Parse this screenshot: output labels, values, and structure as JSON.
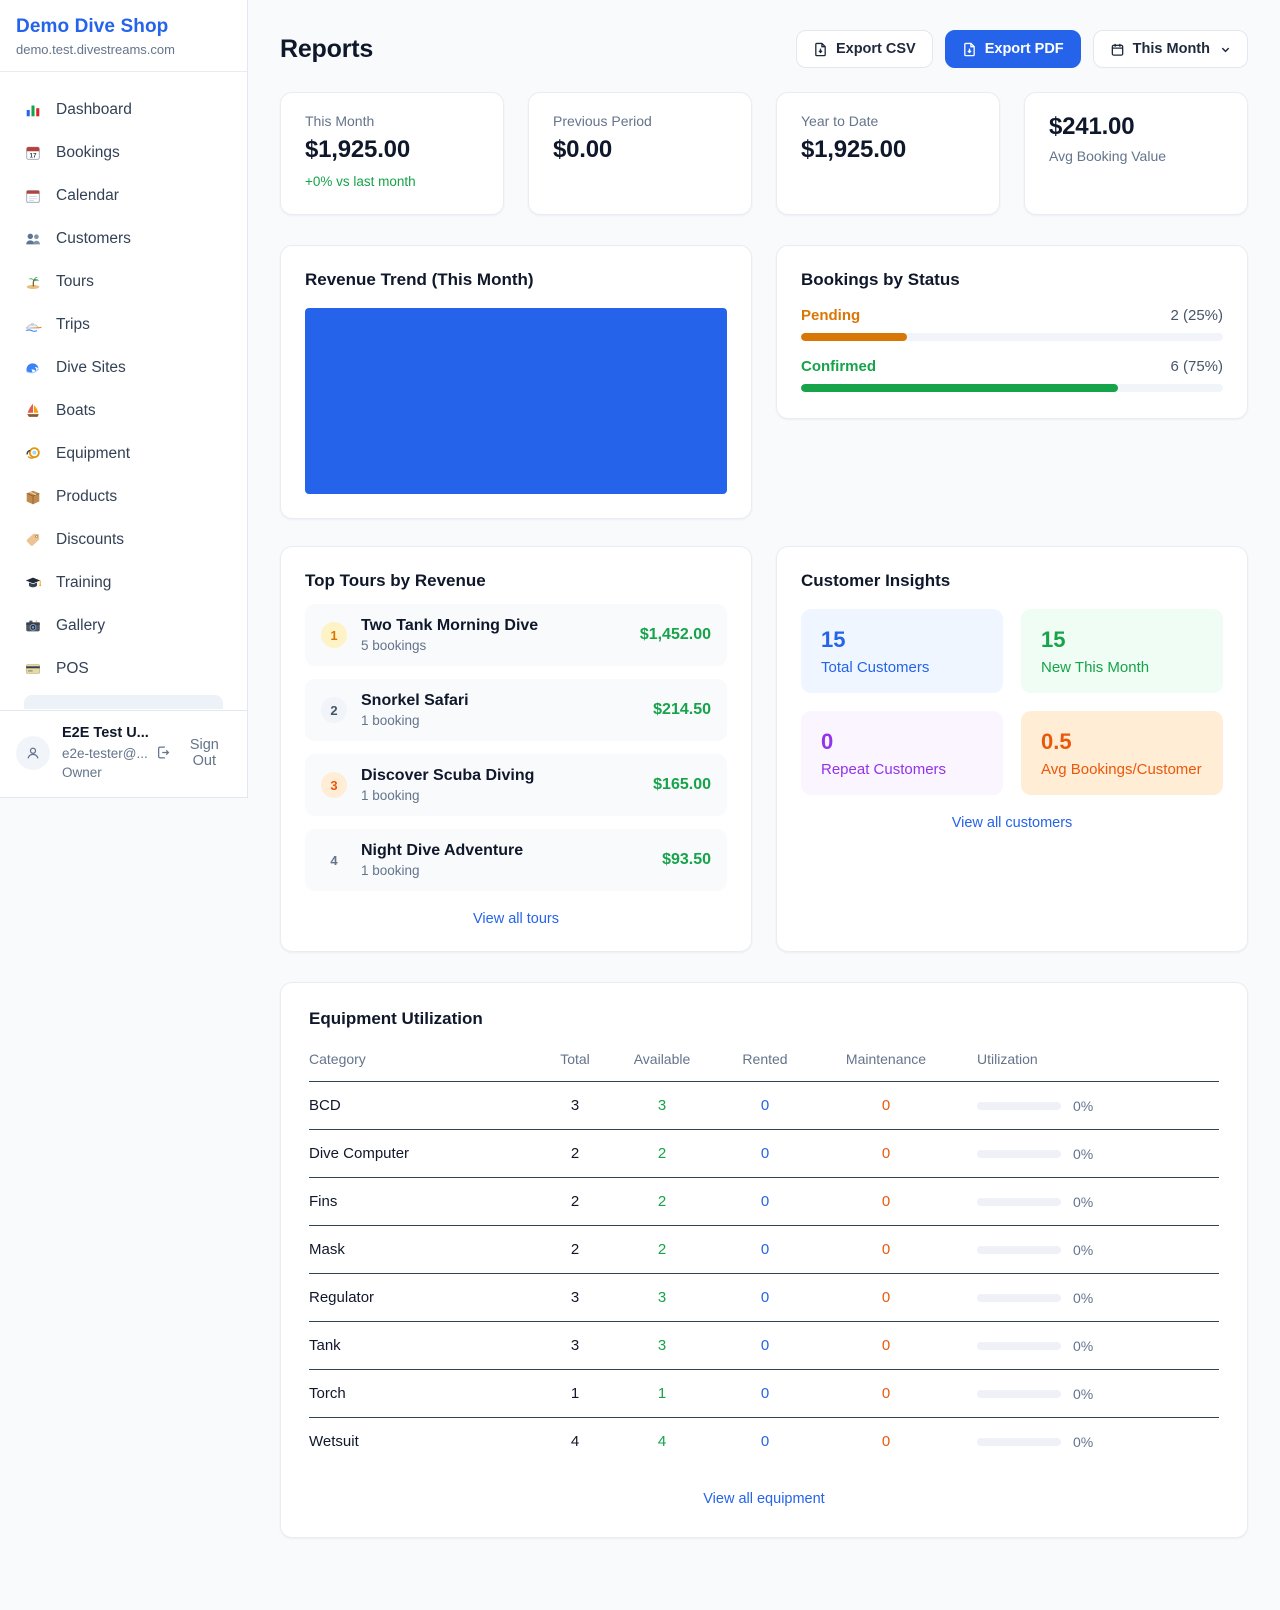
{
  "colors": {
    "accent_blue": "#2563eb",
    "success_green": "#16a34a",
    "pending_amber": "#d97706",
    "maintenance_orange": "#ea580c",
    "repeat_purple": "#9333ea",
    "page_background": "#f8fafc"
  },
  "sidebar": {
    "title": "Demo Dive Shop",
    "domain": "demo.test.divestreams.com",
    "nav": [
      {
        "icon": "bar-chart-icon",
        "label": "Dashboard"
      },
      {
        "icon": "calendar-17-icon",
        "label": "Bookings"
      },
      {
        "icon": "spiral-calendar-icon",
        "label": "Calendar"
      },
      {
        "icon": "people-icon",
        "label": "Customers"
      },
      {
        "icon": "island-icon",
        "label": "Tours"
      },
      {
        "icon": "speedboat-icon",
        "label": "Trips"
      },
      {
        "icon": "wave-icon",
        "label": "Dive Sites"
      },
      {
        "icon": "sailboat-icon",
        "label": "Boats"
      },
      {
        "icon": "dive-mask-icon",
        "label": "Equipment"
      },
      {
        "icon": "package-icon",
        "label": "Products"
      },
      {
        "icon": "tag-icon",
        "label": "Discounts"
      },
      {
        "icon": "graduation-cap-icon",
        "label": "Training"
      },
      {
        "icon": "camera-icon",
        "label": "Gallery"
      },
      {
        "icon": "credit-card-icon",
        "label": "POS"
      }
    ],
    "user": {
      "name": "E2E Test U...",
      "email": "e2e-tester@...",
      "role": "Owner",
      "sign_out_label": "Sign Out"
    }
  },
  "header": {
    "title": "Reports",
    "export_csv_label": "Export CSV",
    "export_pdf_label": "Export PDF",
    "period_label": "This Month"
  },
  "stats": [
    {
      "label": "This Month",
      "value": "$1,925.00",
      "delta": "+0% vs last month"
    },
    {
      "label": "Previous Period",
      "value": "$0.00"
    },
    {
      "label": "Year to Date",
      "value": "$1,925.00"
    },
    {
      "label": "Avg Booking Value",
      "value": "$241.00"
    }
  ],
  "revenue_trend": {
    "title": "Revenue Trend (This Month)",
    "chart": {
      "type": "bar",
      "title": "Revenue Trend (This Month)",
      "color": "#2563eb",
      "note": "renders as one solid fully-filled blue block; no axes, ticks or labels visible"
    }
  },
  "bookings_by_status": {
    "title": "Bookings by Status",
    "rows": [
      {
        "label": "Pending",
        "value": "2 (25%)",
        "pct": "25%"
      },
      {
        "label": "Confirmed",
        "value": "6 (75%)",
        "pct": "75%"
      }
    ]
  },
  "top_tours": {
    "title": "Top Tours by Revenue",
    "link": "View all tours",
    "items": [
      {
        "rank": "1",
        "name": "Two Tank Morning Dive",
        "bookings": "5 bookings",
        "revenue": "$1,452.00"
      },
      {
        "rank": "2",
        "name": "Snorkel Safari",
        "bookings": "1 booking",
        "revenue": "$214.50"
      },
      {
        "rank": "3",
        "name": "Discover Scuba Diving",
        "bookings": "1 booking",
        "revenue": "$165.00"
      },
      {
        "rank": "4",
        "name": "Night Dive Adventure",
        "bookings": "1 booking",
        "revenue": "$93.50"
      }
    ]
  },
  "customer_insights": {
    "title": "Customer Insights",
    "link": "View all customers",
    "tiles": [
      {
        "value": "15",
        "label": "Total Customers"
      },
      {
        "value": "15",
        "label": "New This Month"
      },
      {
        "value": "0",
        "label": "Repeat Customers"
      },
      {
        "value": "0.5",
        "label": "Avg Bookings/Customer"
      }
    ]
  },
  "equipment": {
    "title": "Equipment Utilization",
    "link": "View all equipment",
    "columns": {
      "category": "Category",
      "total": "Total",
      "available": "Available",
      "rented": "Rented",
      "maintenance": "Maintenance",
      "utilization": "Utilization"
    },
    "rows": [
      {
        "category": "BCD",
        "total": "3",
        "available": "3",
        "rented": "0",
        "maintenance": "0",
        "utilization": "0%",
        "pct": "0%"
      },
      {
        "category": "Dive Computer",
        "total": "2",
        "available": "2",
        "rented": "0",
        "maintenance": "0",
        "utilization": "0%",
        "pct": "0%"
      },
      {
        "category": "Fins",
        "total": "2",
        "available": "2",
        "rented": "0",
        "maintenance": "0",
        "utilization": "0%",
        "pct": "0%"
      },
      {
        "category": "Mask",
        "total": "2",
        "available": "2",
        "rented": "0",
        "maintenance": "0",
        "utilization": "0%",
        "pct": "0%"
      },
      {
        "category": "Regulator",
        "total": "3",
        "available": "3",
        "rented": "0",
        "maintenance": "0",
        "utilization": "0%",
        "pct": "0%"
      },
      {
        "category": "Tank",
        "total": "3",
        "available": "3",
        "rented": "0",
        "maintenance": "0",
        "utilization": "0%",
        "pct": "0%"
      },
      {
        "category": "Torch",
        "total": "1",
        "available": "1",
        "rented": "0",
        "maintenance": "0",
        "utilization": "0%",
        "pct": "0%"
      },
      {
        "category": "Wetsuit",
        "total": "4",
        "available": "4",
        "rented": "0",
        "maintenance": "0",
        "utilization": "0%",
        "pct": "0%"
      }
    ]
  }
}
